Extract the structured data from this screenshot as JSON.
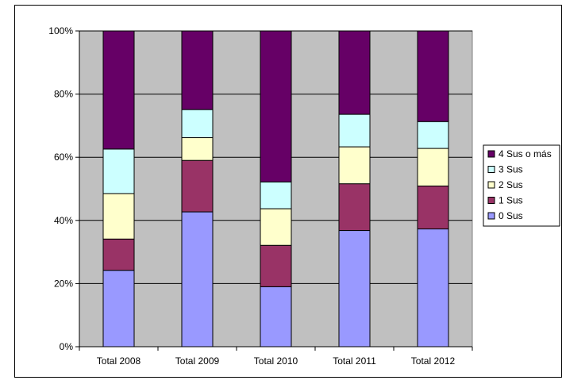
{
  "chart_data": {
    "type": "bar",
    "stacked": true,
    "percent_stacked": true,
    "title": "",
    "xlabel": "",
    "ylabel": "",
    "categories": [
      "Total 2008",
      "Total 2009",
      "Total 2010",
      "Total 2011",
      "Total 2012"
    ],
    "ylim": [
      0,
      100
    ],
    "yticks": [
      0,
      20,
      40,
      60,
      80,
      100
    ],
    "ytick_labels": [
      "0%",
      "20%",
      "40%",
      "60%",
      "80%",
      "100%"
    ],
    "grid": true,
    "plot_background": "#c0c0c0",
    "legend_position": "right",
    "series": [
      {
        "name": "0 Sus",
        "color": "#9999ff",
        "values": [
          24.2,
          42.7,
          19.0,
          36.8,
          37.3
        ]
      },
      {
        "name": "1 Sus",
        "color": "#993366",
        "values": [
          9.9,
          16.3,
          13.1,
          14.8,
          13.6
        ]
      },
      {
        "name": "2 Sus",
        "color": "#ffffcc",
        "values": [
          14.4,
          7.2,
          11.6,
          11.7,
          11.9
        ]
      },
      {
        "name": "3 Sus",
        "color": "#ccffff",
        "values": [
          14.1,
          8.9,
          8.5,
          10.3,
          8.5
        ]
      },
      {
        "name": "4 Sus o más",
        "color": "#660066",
        "values": [
          37.4,
          24.9,
          47.8,
          26.4,
          28.7
        ]
      }
    ]
  }
}
